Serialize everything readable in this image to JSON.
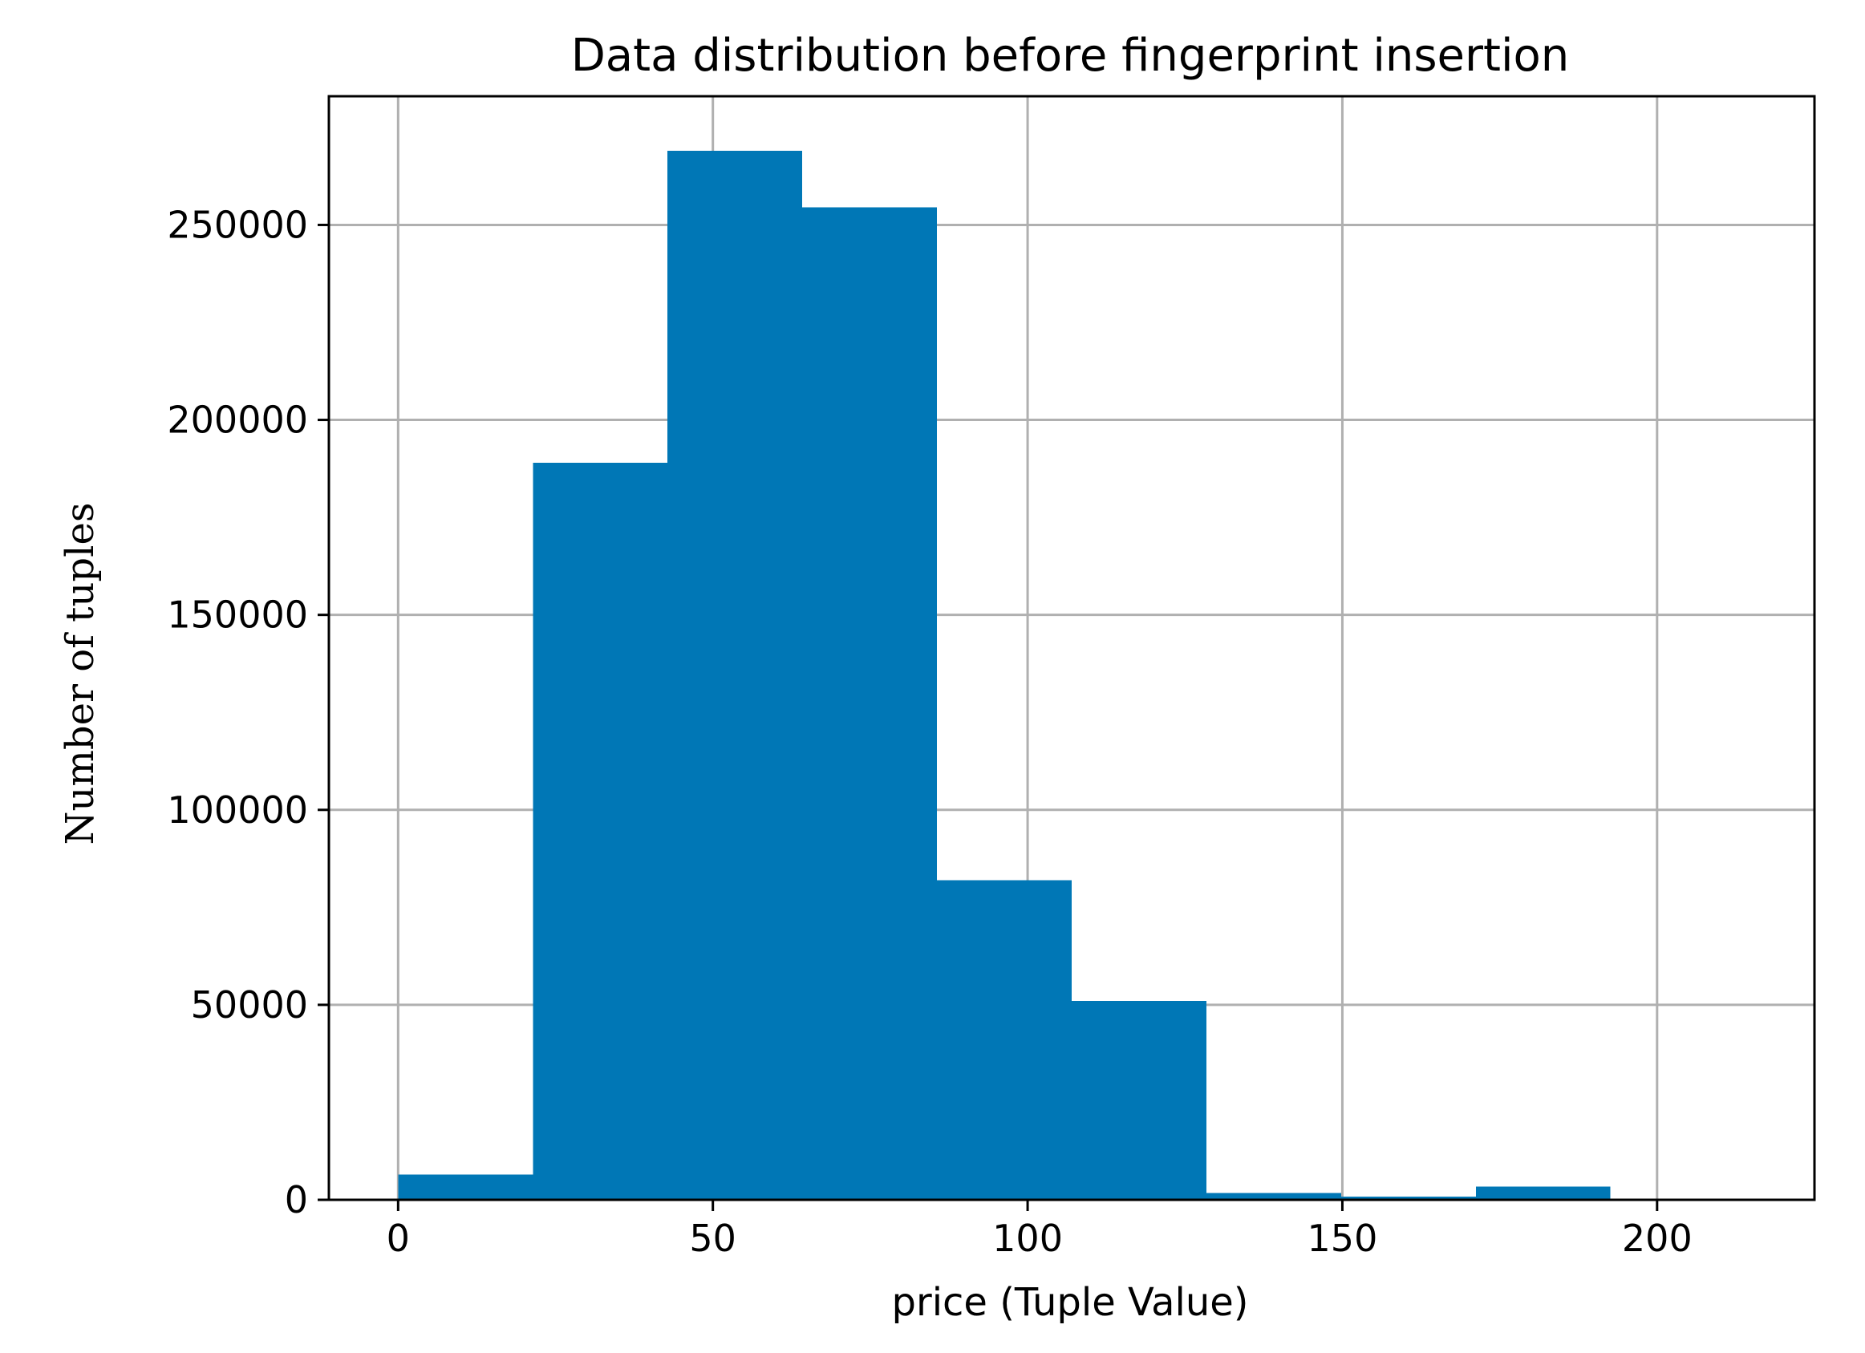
{
  "chart_data": {
    "type": "bar",
    "title": "Data distribution before fingerprint insertion",
    "xlabel": "price (Tuple Value)",
    "ylabel": "Number of tuples",
    "xlim": [
      -11,
      225
    ],
    "ylim": [
      0,
      283000
    ],
    "xticks": [
      0,
      50,
      100,
      150,
      200
    ],
    "xtick_labels": [
      "0",
      "50",
      "100",
      "150",
      "200"
    ],
    "yticks": [
      0,
      50000,
      100000,
      150000,
      200000,
      250000
    ],
    "ytick_labels": [
      "0",
      "50000",
      "100000",
      "150000",
      "200000",
      "250000"
    ],
    "grid": true,
    "color": "#0077b6",
    "bins": [
      {
        "x0": 0,
        "x1": 21.4,
        "count": 6500
      },
      {
        "x0": 21.4,
        "x1": 42.8,
        "count": 189000
      },
      {
        "x0": 42.8,
        "x1": 64.2,
        "count": 269000
      },
      {
        "x0": 64.2,
        "x1": 85.6,
        "count": 254500
      },
      {
        "x0": 85.6,
        "x1": 107.0,
        "count": 82000
      },
      {
        "x0": 107.0,
        "x1": 128.4,
        "count": 51000
      },
      {
        "x0": 128.4,
        "x1": 149.8,
        "count": 1700
      },
      {
        "x0": 149.8,
        "x1": 171.2,
        "count": 800
      },
      {
        "x0": 171.2,
        "x1": 192.6,
        "count": 3400
      },
      {
        "x0": 192.6,
        "x1": 214.0,
        "count": 0
      }
    ]
  }
}
